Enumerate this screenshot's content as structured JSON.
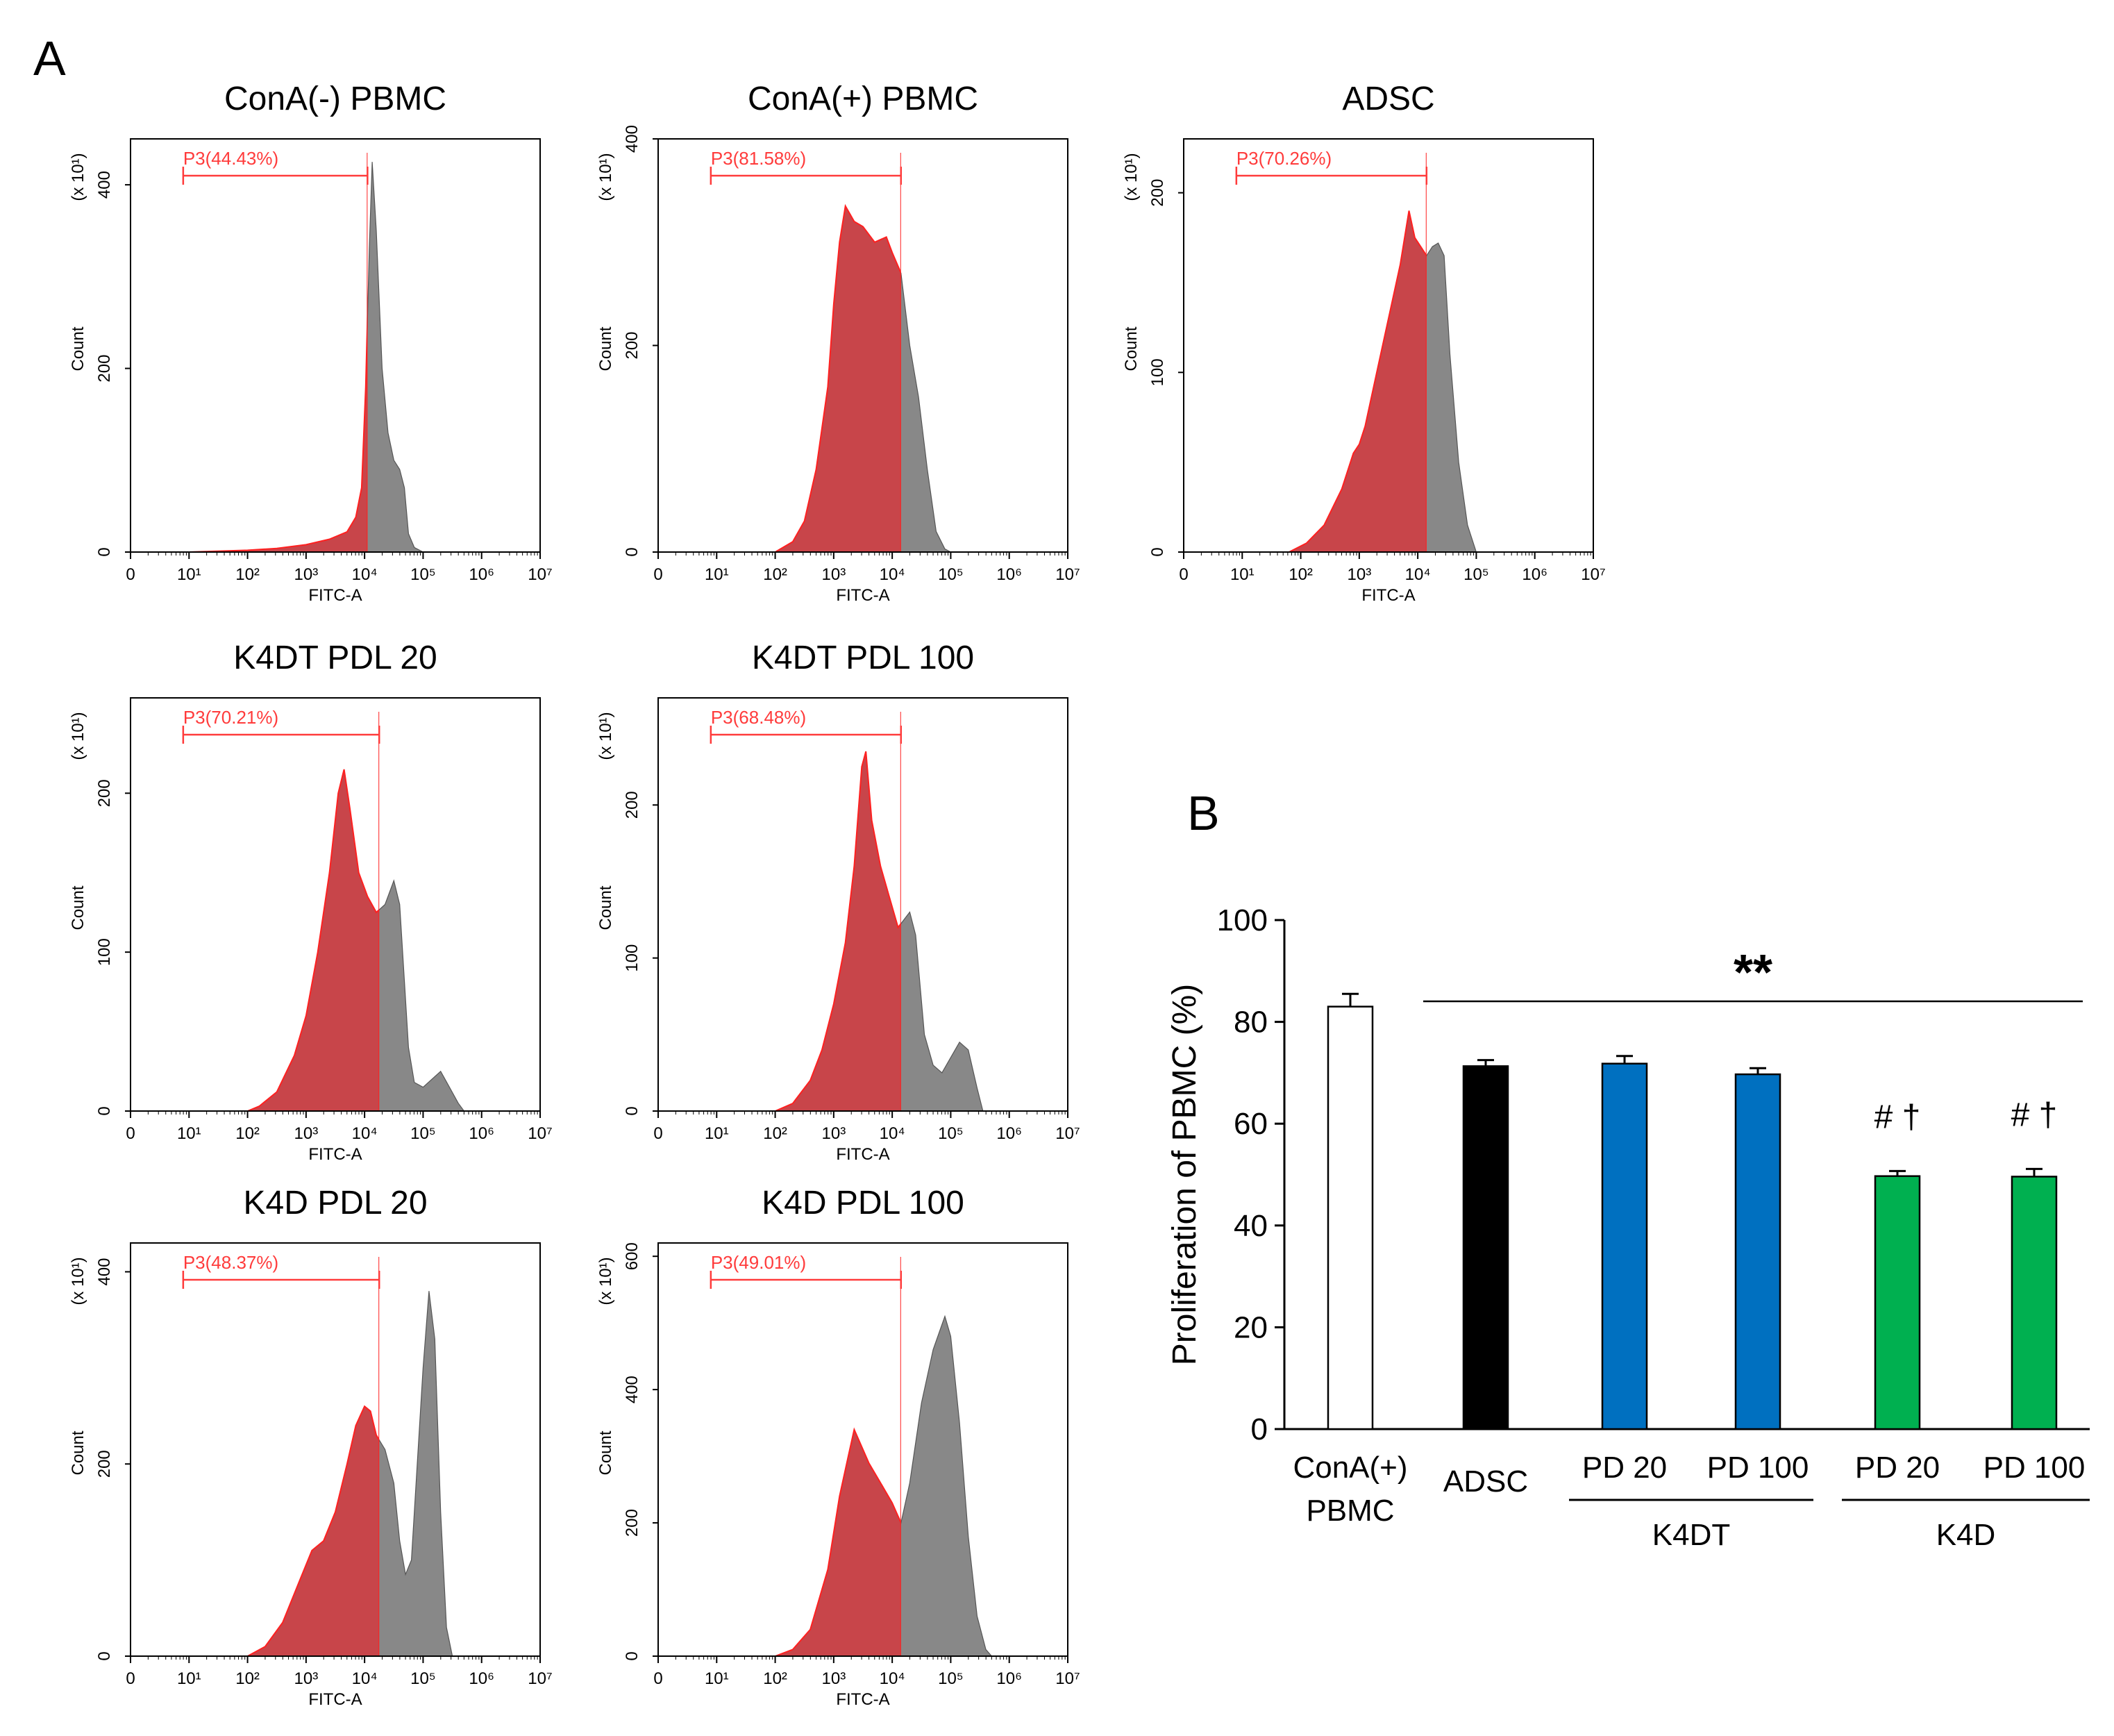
{
  "figure": {
    "panel_a_letter": "A",
    "panel_b_letter": "B"
  },
  "colors": {
    "gated_fill": "#c8454a",
    "gated_edge": "#ff2020",
    "ungated_fill": "#888888",
    "gate_line": "#ff3b3b",
    "conA_bar": "#ffffff",
    "adsc_bar": "#000000",
    "k4dt_bar": "#0070c0",
    "k4d_bar": "#00b050"
  },
  "chart_data": [
    {
      "type": "histogram",
      "title": "ConA(-) PBMC",
      "xlabel": "FITC-A",
      "ylabel": "Count",
      "yscale_label": "(x 10",
      "yscale_exp": "1",
      "gate_label": "P3(44.43%)",
      "gate_range": [
        0.9,
        4.05
      ],
      "gate_boundary": 4.05,
      "ylim": [
        0,
        450
      ],
      "yticks": [
        0,
        200,
        400
      ],
      "xticks": [
        0,
        1,
        2,
        3,
        4,
        5,
        6,
        7
      ],
      "profile": [
        [
          0,
          0
        ],
        [
          1.0,
          0
        ],
        [
          2.0,
          2
        ],
        [
          2.5,
          4
        ],
        [
          3.0,
          8
        ],
        [
          3.4,
          14
        ],
        [
          3.7,
          22
        ],
        [
          3.85,
          38
        ],
        [
          3.95,
          70
        ],
        [
          4.02,
          180
        ],
        [
          4.08,
          330
        ],
        [
          4.13,
          425
        ],
        [
          4.2,
          350
        ],
        [
          4.3,
          200
        ],
        [
          4.4,
          130
        ],
        [
          4.5,
          100
        ],
        [
          4.6,
          90
        ],
        [
          4.68,
          70
        ],
        [
          4.75,
          20
        ],
        [
          4.85,
          5
        ],
        [
          5.0,
          0
        ]
      ]
    },
    {
      "type": "histogram",
      "title": "ConA(+) PBMC",
      "xlabel": "FITC-A",
      "ylabel": "Count",
      "yscale_label": "(x 10",
      "yscale_exp": "1",
      "gate_label": "P3(81.58%)",
      "gate_range": [
        0.9,
        4.15
      ],
      "gate_boundary": 4.15,
      "ylim": [
        0,
        400
      ],
      "yticks": [
        0,
        200,
        400
      ],
      "xticks": [
        0,
        1,
        2,
        3,
        4,
        5,
        6,
        7
      ],
      "profile": [
        [
          0,
          0
        ],
        [
          2.0,
          0
        ],
        [
          2.3,
          10
        ],
        [
          2.5,
          30
        ],
        [
          2.7,
          80
        ],
        [
          2.9,
          160
        ],
        [
          3.0,
          240
        ],
        [
          3.1,
          300
        ],
        [
          3.2,
          335
        ],
        [
          3.35,
          320
        ],
        [
          3.5,
          315
        ],
        [
          3.7,
          300
        ],
        [
          3.9,
          305
        ],
        [
          4.0,
          290
        ],
        [
          4.15,
          270
        ],
        [
          4.3,
          200
        ],
        [
          4.45,
          150
        ],
        [
          4.6,
          80
        ],
        [
          4.75,
          20
        ],
        [
          4.9,
          3
        ],
        [
          5.0,
          0
        ]
      ]
    },
    {
      "type": "histogram",
      "title": "ADSC",
      "xlabel": "FITC-A",
      "ylabel": "Count",
      "yscale_label": "(x 10",
      "yscale_exp": "1",
      "gate_label": "P3(70.26%)",
      "gate_range": [
        0.9,
        4.15
      ],
      "gate_boundary": 4.15,
      "ylim": [
        0,
        230
      ],
      "yticks": [
        0,
        100,
        200
      ],
      "xticks": [
        0,
        1,
        2,
        3,
        4,
        5,
        6,
        7
      ],
      "profile": [
        [
          0,
          0
        ],
        [
          1.8,
          0
        ],
        [
          2.1,
          5
        ],
        [
          2.4,
          15
        ],
        [
          2.7,
          35
        ],
        [
          2.9,
          55
        ],
        [
          3.0,
          60
        ],
        [
          3.1,
          70
        ],
        [
          3.3,
          100
        ],
        [
          3.5,
          130
        ],
        [
          3.7,
          160
        ],
        [
          3.85,
          190
        ],
        [
          3.95,
          175
        ],
        [
          4.05,
          170
        ],
        [
          4.15,
          165
        ],
        [
          4.25,
          170
        ],
        [
          4.35,
          172
        ],
        [
          4.45,
          165
        ],
        [
          4.55,
          110
        ],
        [
          4.7,
          50
        ],
        [
          4.85,
          15
        ],
        [
          5.0,
          0
        ]
      ]
    },
    {
      "type": "histogram",
      "title": "K4DT PDL 20",
      "xlabel": "FITC-A",
      "ylabel": "Count",
      "yscale_label": "(x 10",
      "yscale_exp": "1",
      "gate_label": "P3(70.21%)",
      "gate_range": [
        0.9,
        4.25
      ],
      "gate_boundary": 4.25,
      "ylim": [
        0,
        260
      ],
      "yticks": [
        0,
        100,
        200
      ],
      "xticks": [
        0,
        1,
        2,
        3,
        4,
        5,
        6,
        7
      ],
      "profile": [
        [
          0,
          0
        ],
        [
          2.0,
          0
        ],
        [
          2.2,
          3
        ],
        [
          2.5,
          12
        ],
        [
          2.8,
          35
        ],
        [
          3.0,
          60
        ],
        [
          3.2,
          100
        ],
        [
          3.4,
          150
        ],
        [
          3.55,
          200
        ],
        [
          3.65,
          215
        ],
        [
          3.75,
          190
        ],
        [
          3.9,
          150
        ],
        [
          4.05,
          135
        ],
        [
          4.2,
          125
        ],
        [
          4.35,
          130
        ],
        [
          4.5,
          145
        ],
        [
          4.6,
          130
        ],
        [
          4.75,
          40
        ],
        [
          4.85,
          18
        ],
        [
          5.0,
          15
        ],
        [
          5.15,
          20
        ],
        [
          5.3,
          25
        ],
        [
          5.45,
          15
        ],
        [
          5.6,
          5
        ],
        [
          5.7,
          0
        ]
      ]
    },
    {
      "type": "histogram",
      "title": "K4DT PDL 100",
      "xlabel": "FITC-A",
      "ylabel": "Count",
      "yscale_label": "(x 10",
      "yscale_exp": "1",
      "gate_label": "P3(68.48%)",
      "gate_range": [
        0.9,
        4.15
      ],
      "gate_boundary": 4.15,
      "ylim": [
        0,
        270
      ],
      "yticks": [
        0,
        100,
        200
      ],
      "xticks": [
        0,
        1,
        2,
        3,
        4,
        5,
        6,
        7
      ],
      "profile": [
        [
          0,
          0
        ],
        [
          2.0,
          0
        ],
        [
          2.3,
          5
        ],
        [
          2.6,
          20
        ],
        [
          2.8,
          40
        ],
        [
          3.0,
          70
        ],
        [
          3.2,
          110
        ],
        [
          3.35,
          160
        ],
        [
          3.48,
          225
        ],
        [
          3.55,
          235
        ],
        [
          3.65,
          190
        ],
        [
          3.8,
          160
        ],
        [
          3.95,
          140
        ],
        [
          4.1,
          120
        ],
        [
          4.2,
          125
        ],
        [
          4.3,
          130
        ],
        [
          4.4,
          115
        ],
        [
          4.55,
          50
        ],
        [
          4.7,
          30
        ],
        [
          4.85,
          25
        ],
        [
          5.0,
          35
        ],
        [
          5.15,
          45
        ],
        [
          5.3,
          40
        ],
        [
          5.45,
          15
        ],
        [
          5.55,
          0
        ]
      ]
    },
    {
      "type": "histogram",
      "title": "K4D PDL 20",
      "xlabel": "FITC-A",
      "ylabel": "Count",
      "yscale_label": "(x 10",
      "yscale_exp": "1",
      "gate_label": "P3(48.37%)",
      "gate_range": [
        0.9,
        4.25
      ],
      "gate_boundary": 4.25,
      "ylim": [
        0,
        430
      ],
      "yticks": [
        0,
        200,
        400
      ],
      "xticks": [
        0,
        1,
        2,
        3,
        4,
        5,
        6,
        7
      ],
      "profile": [
        [
          0,
          0
        ],
        [
          2.0,
          0
        ],
        [
          2.3,
          10
        ],
        [
          2.6,
          35
        ],
        [
          2.9,
          80
        ],
        [
          3.1,
          110
        ],
        [
          3.3,
          120
        ],
        [
          3.5,
          150
        ],
        [
          3.7,
          200
        ],
        [
          3.85,
          240
        ],
        [
          4.0,
          260
        ],
        [
          4.1,
          255
        ],
        [
          4.2,
          230
        ],
        [
          4.35,
          215
        ],
        [
          4.5,
          180
        ],
        [
          4.6,
          120
        ],
        [
          4.7,
          85
        ],
        [
          4.8,
          100
        ],
        [
          4.9,
          200
        ],
        [
          5.0,
          300
        ],
        [
          5.1,
          380
        ],
        [
          5.2,
          330
        ],
        [
          5.3,
          150
        ],
        [
          5.4,
          30
        ],
        [
          5.5,
          0
        ]
      ]
    },
    {
      "type": "histogram",
      "title": "K4D PDL 100",
      "xlabel": "FITC-A",
      "ylabel": "Count",
      "yscale_label": "(x 10",
      "yscale_exp": "1",
      "gate_label": "P3(49.01%)",
      "gate_range": [
        0.9,
        4.15
      ],
      "gate_boundary": 4.15,
      "ylim": [
        0,
        620
      ],
      "yticks": [
        0,
        200,
        400,
        600
      ],
      "xticks": [
        0,
        1,
        2,
        3,
        4,
        5,
        6,
        7
      ],
      "profile": [
        [
          0,
          0
        ],
        [
          2.0,
          0
        ],
        [
          2.3,
          10
        ],
        [
          2.6,
          40
        ],
        [
          2.9,
          130
        ],
        [
          3.1,
          240
        ],
        [
          3.25,
          300
        ],
        [
          3.35,
          340
        ],
        [
          3.45,
          320
        ],
        [
          3.6,
          290
        ],
        [
          3.8,
          260
        ],
        [
          4.0,
          230
        ],
        [
          4.15,
          200
        ],
        [
          4.3,
          260
        ],
        [
          4.5,
          380
        ],
        [
          4.7,
          460
        ],
        [
          4.9,
          510
        ],
        [
          5.0,
          480
        ],
        [
          5.15,
          350
        ],
        [
          5.3,
          180
        ],
        [
          5.45,
          60
        ],
        [
          5.6,
          10
        ],
        [
          5.7,
          0
        ]
      ]
    },
    {
      "type": "bar",
      "ylabel": "Proliferation of PBMC (%)",
      "ylim": [
        0,
        100
      ],
      "yticks": [
        0,
        20,
        40,
        60,
        80,
        100
      ],
      "categories": [
        "ConA(+)\nPBMC",
        "ADSC",
        "PD 20",
        "PD 100",
        "PD 20",
        "PD 100"
      ],
      "category_lines": [
        [
          "ConA(+)",
          "PBMC"
        ],
        [
          "ADSC"
        ],
        [
          "PD 20"
        ],
        [
          "PD 100"
        ],
        [
          "PD 20"
        ],
        [
          "PD 100"
        ]
      ],
      "values": [
        83,
        71.3,
        71.8,
        69.7,
        49.7,
        49.6
      ],
      "errors": [
        2.5,
        1.2,
        1.5,
        1.2,
        1.0,
        1.5
      ],
      "bar_colors": [
        "#ffffff",
        "#000000",
        "#0070c0",
        "#0070c0",
        "#00b050",
        "#00b050"
      ],
      "groups": [
        {
          "label": "K4DT",
          "members": [
            2,
            3
          ]
        },
        {
          "label": "K4D",
          "members": [
            4,
            5
          ]
        }
      ],
      "significance": {
        "label": "**",
        "from": 1,
        "to": 5
      },
      "annotations": [
        {
          "index": 4,
          "text": "# †"
        },
        {
          "index": 5,
          "text": "# †"
        }
      ]
    }
  ]
}
